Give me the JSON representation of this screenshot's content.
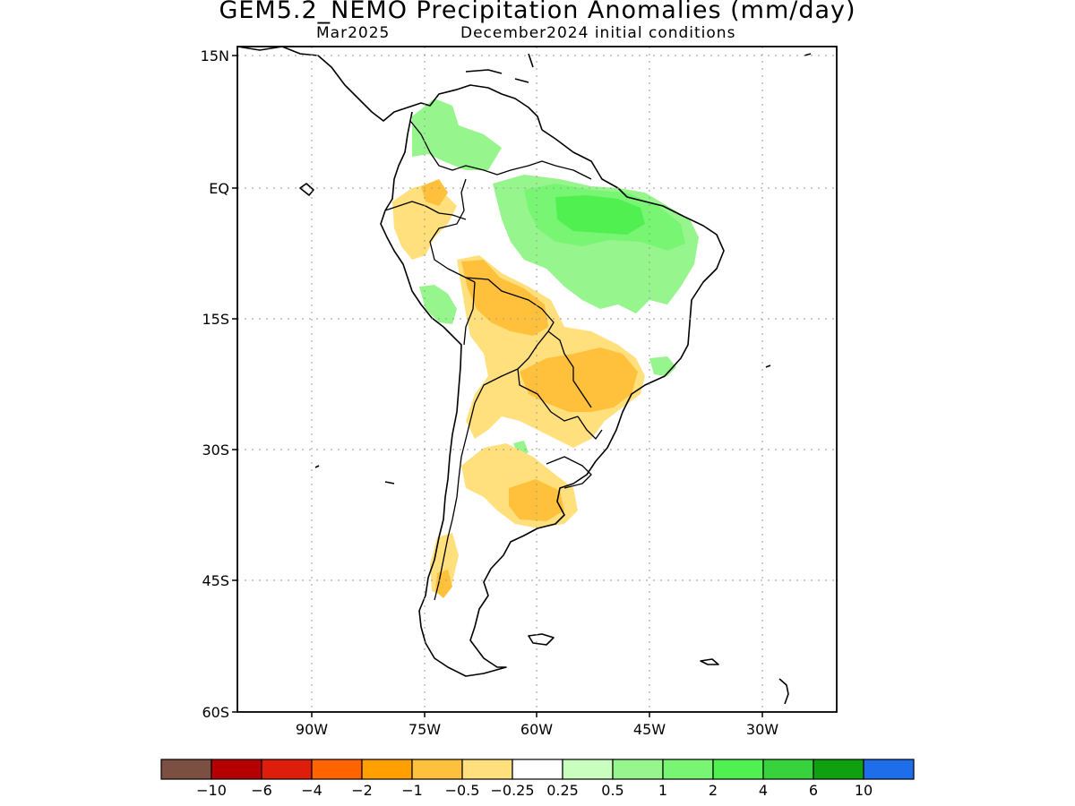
{
  "title": "GEM5.2_NEMO Precipitation Anomalies (mm/day)",
  "subtitle_left": "Mar2025",
  "subtitle_right": "December2024 initial conditions",
  "lat_labels": [
    "15N",
    "EQ",
    "15S",
    "30S",
    "45S",
    "60S"
  ],
  "lon_labels": [
    "90W",
    "75W",
    "60W",
    "45W",
    "30W"
  ],
  "colorbar": {
    "colors": [
      "#7b5043",
      "#b40000",
      "#dc1e0a",
      "#ff6400",
      "#ffa000",
      "#ffc03c",
      "#ffe07d",
      "#ffffff",
      "#c8ffbe",
      "#96f58c",
      "#78f573",
      "#50f050",
      "#37d23c",
      "#0fa00f",
      "#1e6eeb"
    ],
    "labels": [
      "−10",
      "−6",
      "−4",
      "−2",
      "−1",
      "−0.5",
      "−0.25",
      "0.25",
      "0.5",
      "1",
      "2",
      "4",
      "6",
      "10"
    ]
  }
}
